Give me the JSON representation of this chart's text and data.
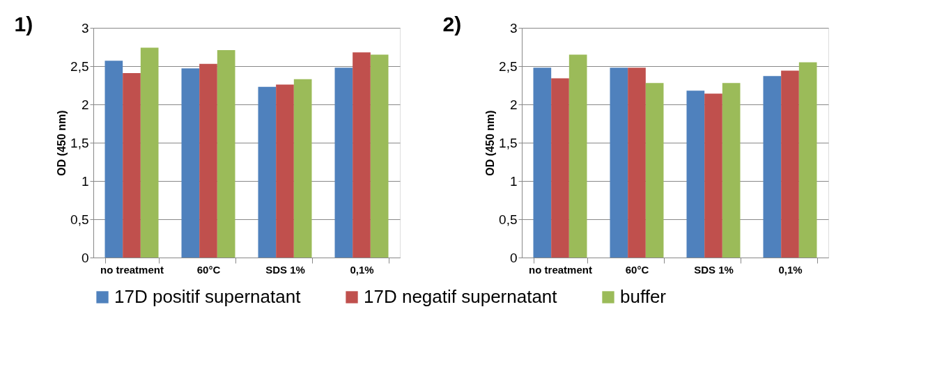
{
  "chart_data": [
    {
      "type": "bar",
      "title": "1)",
      "ylabel": "OD (450 nm)",
      "categories": [
        "no treatment",
        "60°C",
        "SDS 1%",
        "0,1%"
      ],
      "series": [
        {
          "name": "17D positif supernatant",
          "color": "#4f81bd",
          "values": [
            2.57,
            2.47,
            2.23,
            2.48
          ]
        },
        {
          "name": "17D negatif supernatant",
          "color": "#c0504d",
          "values": [
            2.41,
            2.53,
            2.26,
            2.68
          ]
        },
        {
          "name": "buffer",
          "color": "#9bbb59",
          "values": [
            2.74,
            2.71,
            2.33,
            2.65
          ]
        }
      ],
      "ylim": [
        0,
        3
      ],
      "yticks": [
        0,
        {
          "value": 0.5,
          "label": "0,5"
        },
        1,
        {
          "value": 1.5,
          "label": "1,5"
        },
        2,
        {
          "value": 2.5,
          "label": "2,5"
        },
        3
      ],
      "grid": "y",
      "legend": "bottom"
    },
    {
      "type": "bar",
      "title": "2)",
      "ylabel": "OD (450 nm)",
      "categories": [
        "no treatment",
        "60°C",
        "SDS 1%",
        "0,1%"
      ],
      "series": [
        {
          "name": "17D positif supernatant",
          "color": "#4f81bd",
          "values": [
            2.48,
            2.48,
            2.18,
            2.37
          ]
        },
        {
          "name": "17D negatif supernatant",
          "color": "#c0504d",
          "values": [
            2.34,
            2.48,
            2.14,
            2.44
          ]
        },
        {
          "name": "buffer",
          "color": "#9bbb59",
          "values": [
            2.65,
            2.28,
            2.28,
            2.55
          ]
        }
      ],
      "ylim": [
        0,
        3
      ],
      "yticks": [
        0,
        {
          "value": 0.5,
          "label": "0,5"
        },
        1,
        {
          "value": 1.5,
          "label": "1,5"
        },
        2,
        {
          "value": 2.5,
          "label": "2,5"
        },
        3
      ],
      "grid": "y",
      "legend": "bottom"
    }
  ]
}
